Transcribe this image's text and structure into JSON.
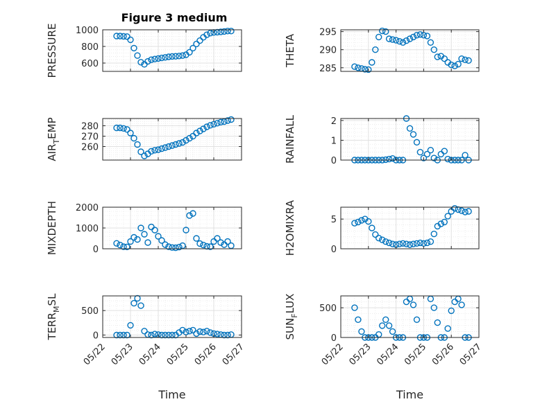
{
  "figure": {
    "title": "Figure 3 medium",
    "marker_color": "#0072BD",
    "axis_color": "#262626",
    "grid_color": "#e0e0e0"
  },
  "chart_data": [
    {
      "type": "scatter",
      "ylabel": "PRESSURE",
      "xlim": [
        "05/22",
        "05/27"
      ],
      "ylim": [
        500,
        1000
      ],
      "yticks": [
        600,
        800,
        1000
      ],
      "xtick_labels": [],
      "xlabel": "",
      "x": [
        "05/22 12:00",
        "05/22 15:00",
        "05/22 18:00",
        "05/22 21:00",
        "05/23 00:00",
        "05/23 03:00",
        "05/23 06:00",
        "05/23 09:00",
        "05/23 12:00",
        "05/23 15:00",
        "05/23 18:00",
        "05/23 21:00",
        "05/24 00:00",
        "05/24 03:00",
        "05/24 06:00",
        "05/24 09:00",
        "05/24 12:00",
        "05/24 15:00",
        "05/24 18:00",
        "05/24 21:00",
        "05/25 00:00",
        "05/25 03:00",
        "05/25 06:00",
        "05/25 09:00",
        "05/25 12:00",
        "05/25 15:00",
        "05/25 18:00",
        "05/25 21:00",
        "05/26 00:00",
        "05/26 03:00",
        "05/26 06:00",
        "05/26 09:00",
        "05/26 12:00",
        "05/26 15:00"
      ],
      "values": [
        925,
        925,
        922,
        918,
        880,
        780,
        690,
        610,
        585,
        620,
        640,
        648,
        655,
        662,
        668,
        675,
        680,
        682,
        685,
        690,
        700,
        730,
        780,
        830,
        870,
        910,
        940,
        960,
        968,
        972,
        975,
        980,
        985,
        985
      ]
    },
    {
      "type": "scatter",
      "ylabel": "THETA",
      "xlim": [
        "05/22",
        "05/27"
      ],
      "ylim": [
        284,
        295.5
      ],
      "yticks": [
        285,
        290,
        295
      ],
      "xtick_labels": [],
      "xlabel": "",
      "x": [
        "05/22 12:00",
        "05/22 15:00",
        "05/22 18:00",
        "05/22 21:00",
        "05/23 00:00",
        "05/23 03:00",
        "05/23 06:00",
        "05/23 09:00",
        "05/23 12:00",
        "05/23 15:00",
        "05/23 18:00",
        "05/23 21:00",
        "05/24 00:00",
        "05/24 03:00",
        "05/24 06:00",
        "05/24 09:00",
        "05/24 12:00",
        "05/24 15:00",
        "05/24 18:00",
        "05/24 21:00",
        "05/25 00:00",
        "05/25 03:00",
        "05/25 06:00",
        "05/25 09:00",
        "05/25 12:00",
        "05/25 15:00",
        "05/25 18:00",
        "05/25 21:00",
        "05/26 00:00",
        "05/26 03:00",
        "05/26 06:00",
        "05/26 09:00",
        "05/26 12:00",
        "05/26 15:00"
      ],
      "values": [
        285.3,
        285.0,
        284.8,
        284.6,
        284.5,
        286.5,
        290.0,
        293.5,
        295.2,
        295.0,
        293.0,
        292.8,
        292.6,
        292.3,
        292.0,
        292.5,
        293.0,
        293.5,
        294.0,
        294.2,
        294.0,
        293.8,
        292.0,
        290.0,
        288.0,
        288.2,
        287.5,
        286.5,
        285.8,
        285.5,
        286.0,
        287.5,
        287.2,
        287.0
      ]
    },
    {
      "type": "scatter",
      "ylabel": "AIR_TEMP",
      "xlim": [
        "05/22",
        "05/27"
      ],
      "ylim": [
        247,
        287
      ],
      "yticks": [
        260,
        270,
        280
      ],
      "xtick_labels": [],
      "xlabel": "",
      "x": [
        "05/22 12:00",
        "05/22 15:00",
        "05/22 18:00",
        "05/22 21:00",
        "05/23 00:00",
        "05/23 03:00",
        "05/23 06:00",
        "05/23 09:00",
        "05/23 12:00",
        "05/23 15:00",
        "05/23 18:00",
        "05/23 21:00",
        "05/24 00:00",
        "05/24 03:00",
        "05/24 06:00",
        "05/24 09:00",
        "05/24 12:00",
        "05/24 15:00",
        "05/24 18:00",
        "05/24 21:00",
        "05/25 00:00",
        "05/25 03:00",
        "05/25 06:00",
        "05/25 09:00",
        "05/25 12:00",
        "05/25 15:00",
        "05/25 18:00",
        "05/25 21:00",
        "05/26 00:00",
        "05/26 03:00",
        "05/26 06:00",
        "05/26 09:00",
        "05/26 12:00",
        "05/26 15:00"
      ],
      "values": [
        278,
        278,
        277.5,
        276.5,
        273,
        268,
        262,
        255,
        251,
        253,
        255.5,
        256.5,
        257,
        258,
        259,
        260,
        261,
        262,
        263,
        264,
        266,
        268,
        270,
        273,
        275,
        277,
        279,
        280.5,
        281.5,
        282.5,
        283.5,
        284,
        285,
        286
      ]
    },
    {
      "type": "scatter",
      "ylabel": "RAINFALL",
      "xlim": [
        "05/22",
        "05/27"
      ],
      "ylim": [
        0,
        2.1
      ],
      "yticks": [
        0,
        1,
        2
      ],
      "xtick_labels": [],
      "xlabel": "",
      "x": [
        "05/22 12:00",
        "05/22 15:00",
        "05/22 18:00",
        "05/22 21:00",
        "05/23 00:00",
        "05/23 03:00",
        "05/23 06:00",
        "05/23 09:00",
        "05/23 12:00",
        "05/23 15:00",
        "05/23 18:00",
        "05/23 21:00",
        "05/24 00:00",
        "05/24 03:00",
        "05/24 06:00",
        "05/24 09:00",
        "05/24 12:00",
        "05/24 15:00",
        "05/24 18:00",
        "05/24 21:00",
        "05/25 00:00",
        "05/25 03:00",
        "05/25 06:00",
        "05/25 09:00",
        "05/25 12:00",
        "05/25 15:00",
        "05/25 18:00",
        "05/25 21:00",
        "05/26 00:00",
        "05/26 03:00",
        "05/26 06:00",
        "05/26 09:00",
        "05/26 12:00",
        "05/26 15:00"
      ],
      "values": [
        0,
        0,
        0,
        0,
        0,
        0,
        0,
        0,
        0,
        0.02,
        0.05,
        0.08,
        0,
        0,
        0,
        2.1,
        1.6,
        1.3,
        0.9,
        0.4,
        0.1,
        0.3,
        0.5,
        0.1,
        0,
        0.3,
        0.45,
        0.05,
        0,
        0,
        0,
        0,
        0.25,
        0
      ]
    },
    {
      "type": "scatter",
      "ylabel": "MIXDEPTH",
      "xlim": [
        "05/22",
        "05/27"
      ],
      "ylim": [
        0,
        2000
      ],
      "yticks": [
        0,
        1000,
        2000
      ],
      "xtick_labels": [],
      "xlabel": "",
      "x": [
        "05/22 12:00",
        "05/22 15:00",
        "05/22 18:00",
        "05/22 21:00",
        "05/23 00:00",
        "05/23 03:00",
        "05/23 06:00",
        "05/23 09:00",
        "05/23 12:00",
        "05/23 15:00",
        "05/23 18:00",
        "05/23 21:00",
        "05/24 00:00",
        "05/24 03:00",
        "05/24 06:00",
        "05/24 09:00",
        "05/24 12:00",
        "05/24 15:00",
        "05/24 18:00",
        "05/24 21:00",
        "05/25 00:00",
        "05/25 03:00",
        "05/25 06:00",
        "05/25 09:00",
        "05/25 12:00",
        "05/25 15:00",
        "05/25 18:00",
        "05/25 21:00",
        "05/26 00:00",
        "05/26 03:00",
        "05/26 06:00",
        "05/26 09:00",
        "05/26 12:00",
        "05/26 15:00"
      ],
      "values": [
        260,
        180,
        100,
        90,
        350,
        550,
        450,
        1000,
        700,
        300,
        1050,
        900,
        600,
        400,
        200,
        100,
        60,
        50,
        80,
        150,
        900,
        1600,
        1700,
        500,
        250,
        180,
        120,
        100,
        350,
        500,
        300,
        200,
        350,
        150
      ]
    },
    {
      "type": "scatter",
      "ylabel": "H2OMIXRA",
      "xlim": [
        "05/22",
        "05/27"
      ],
      "ylim": [
        0,
        7
      ],
      "yticks": [
        0,
        5
      ],
      "xtick_labels": [],
      "xlabel": "",
      "x": [
        "05/22 12:00",
        "05/22 15:00",
        "05/22 18:00",
        "05/22 21:00",
        "05/23 00:00",
        "05/23 03:00",
        "05/23 06:00",
        "05/23 09:00",
        "05/23 12:00",
        "05/23 15:00",
        "05/23 18:00",
        "05/23 21:00",
        "05/24 00:00",
        "05/24 03:00",
        "05/24 06:00",
        "05/24 09:00",
        "05/24 12:00",
        "05/24 15:00",
        "05/24 18:00",
        "05/24 21:00",
        "05/25 00:00",
        "05/25 03:00",
        "05/25 06:00",
        "05/25 09:00",
        "05/25 12:00",
        "05/25 15:00",
        "05/25 18:00",
        "05/25 21:00",
        "05/26 00:00",
        "05/26 03:00",
        "05/26 06:00",
        "05/26 09:00",
        "05/26 12:00",
        "05/26 15:00"
      ],
      "values": [
        4.3,
        4.5,
        4.8,
        5.0,
        4.6,
        3.5,
        2.4,
        1.8,
        1.5,
        1.2,
        1.0,
        0.8,
        0.7,
        0.8,
        0.9,
        0.8,
        0.7,
        0.8,
        0.9,
        1.0,
        0.9,
        1.0,
        1.2,
        2.5,
        3.8,
        4.2,
        4.5,
        5.5,
        6.3,
        6.8,
        6.6,
        6.4,
        6.2,
        6.3
      ]
    },
    {
      "type": "scatter",
      "ylabel": "TERR_MSL",
      "xlim": [
        "05/22",
        "05/27"
      ],
      "ylim": [
        -50,
        800
      ],
      "yticks": [
        0,
        500
      ],
      "xtick_labels": [
        "05/22",
        "05/23",
        "05/24",
        "05/25",
        "05/26",
        "05/27"
      ],
      "xlabel": "Time",
      "x": [
        "05/22 12:00",
        "05/22 15:00",
        "05/22 18:00",
        "05/22 21:00",
        "05/23 00:00",
        "05/23 03:00",
        "05/23 06:00",
        "05/23 09:00",
        "05/23 12:00",
        "05/23 15:00",
        "05/23 18:00",
        "05/23 21:00",
        "05/24 00:00",
        "05/24 03:00",
        "05/24 06:00",
        "05/24 09:00",
        "05/24 12:00",
        "05/24 15:00",
        "05/24 18:00",
        "05/24 21:00",
        "05/25 00:00",
        "05/25 03:00",
        "05/25 06:00",
        "05/25 09:00",
        "05/25 12:00",
        "05/25 15:00",
        "05/25 18:00",
        "05/25 21:00",
        "05/26 00:00",
        "05/26 03:00",
        "05/26 06:00",
        "05/26 09:00",
        "05/26 12:00",
        "05/26 15:00"
      ],
      "values": [
        0,
        0,
        0,
        0,
        200,
        650,
        750,
        600,
        80,
        10,
        0,
        20,
        10,
        0,
        0,
        0,
        0,
        0,
        50,
        100,
        60,
        80,
        100,
        30,
        70,
        60,
        80,
        50,
        30,
        20,
        10,
        0,
        0,
        10
      ]
    },
    {
      "type": "scatter",
      "ylabel": "SUN_FLUX",
      "xlim": [
        "05/22",
        "05/27"
      ],
      "ylim": [
        0,
        700
      ],
      "yticks": [
        0,
        500
      ],
      "xtick_labels": [
        "05/22",
        "05/23",
        "05/24",
        "05/25",
        "05/26",
        "05/27"
      ],
      "xlabel": "Time",
      "x": [
        "05/22 12:00",
        "05/22 15:00",
        "05/22 18:00",
        "05/22 21:00",
        "05/23 00:00",
        "05/23 03:00",
        "05/23 06:00",
        "05/23 09:00",
        "05/23 12:00",
        "05/23 15:00",
        "05/23 18:00",
        "05/23 21:00",
        "05/24 00:00",
        "05/24 03:00",
        "05/24 06:00",
        "05/24 09:00",
        "05/24 12:00",
        "05/24 15:00",
        "05/24 18:00",
        "05/24 21:00",
        "05/25 00:00",
        "05/25 03:00",
        "05/25 06:00",
        "05/25 09:00",
        "05/25 12:00",
        "05/25 15:00",
        "05/25 18:00",
        "05/25 21:00",
        "05/26 00:00",
        "05/26 03:00",
        "05/26 06:00",
        "05/26 09:00",
        "05/26 12:00",
        "05/26 15:00"
      ],
      "values": [
        500,
        300,
        100,
        0,
        0,
        0,
        0,
        50,
        200,
        300,
        200,
        100,
        0,
        0,
        0,
        600,
        650,
        550,
        300,
        0,
        0,
        0,
        650,
        500,
        250,
        0,
        0,
        150,
        450,
        600,
        650,
        550,
        0,
        0
      ]
    }
  ]
}
